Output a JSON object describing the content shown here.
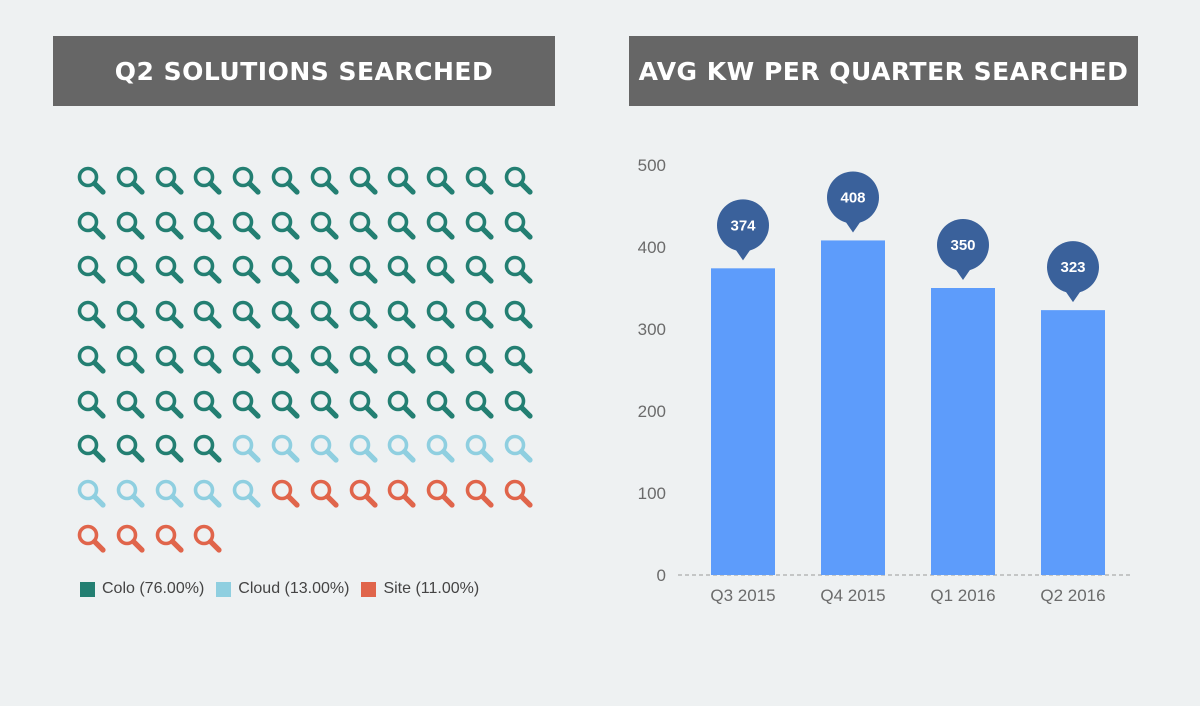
{
  "waffle": {
    "title": "Q2 SOLUTIONS SEARCHED",
    "columns": 12,
    "counts": [
      76,
      13,
      11
    ],
    "colors": [
      "#237f72",
      "#8fcfe0",
      "#e0654b"
    ],
    "legend": [
      {
        "label": "Colo (76.00%)",
        "color": "#237f72"
      },
      {
        "label": "Cloud (13.00%)",
        "color": "#8fcfe0"
      },
      {
        "label": "Site (11.00%)",
        "color": "#e0654b"
      }
    ],
    "icon": "magnifier-icon"
  },
  "bar": {
    "title": "AVG KW PER QUARTER SEARCHED",
    "bar_color": "#5d9cfb",
    "bubble_color": "#3a619b"
  },
  "chart_data": [
    {
      "type": "pie",
      "title": "Q2 SOLUTIONS SEARCHED",
      "categories": [
        "Colo",
        "Cloud",
        "Site"
      ],
      "values": [
        76.0,
        13.0,
        11.0
      ],
      "unit": "%",
      "legend_position": "bottom"
    },
    {
      "type": "bar",
      "title": "AVG KW PER QUARTER SEARCHED",
      "categories": [
        "Q3 2015",
        "Q4 2015",
        "Q1 2016",
        "Q2 2016"
      ],
      "values": [
        374,
        408,
        350,
        323
      ],
      "data_labels": [
        "374",
        "408",
        "350",
        "323"
      ],
      "xlabel": "",
      "ylabel": "",
      "ylim": [
        0,
        500
      ],
      "yticks": [
        "0",
        "100",
        "200",
        "300",
        "400",
        "500"
      ],
      "grid": false
    }
  ]
}
